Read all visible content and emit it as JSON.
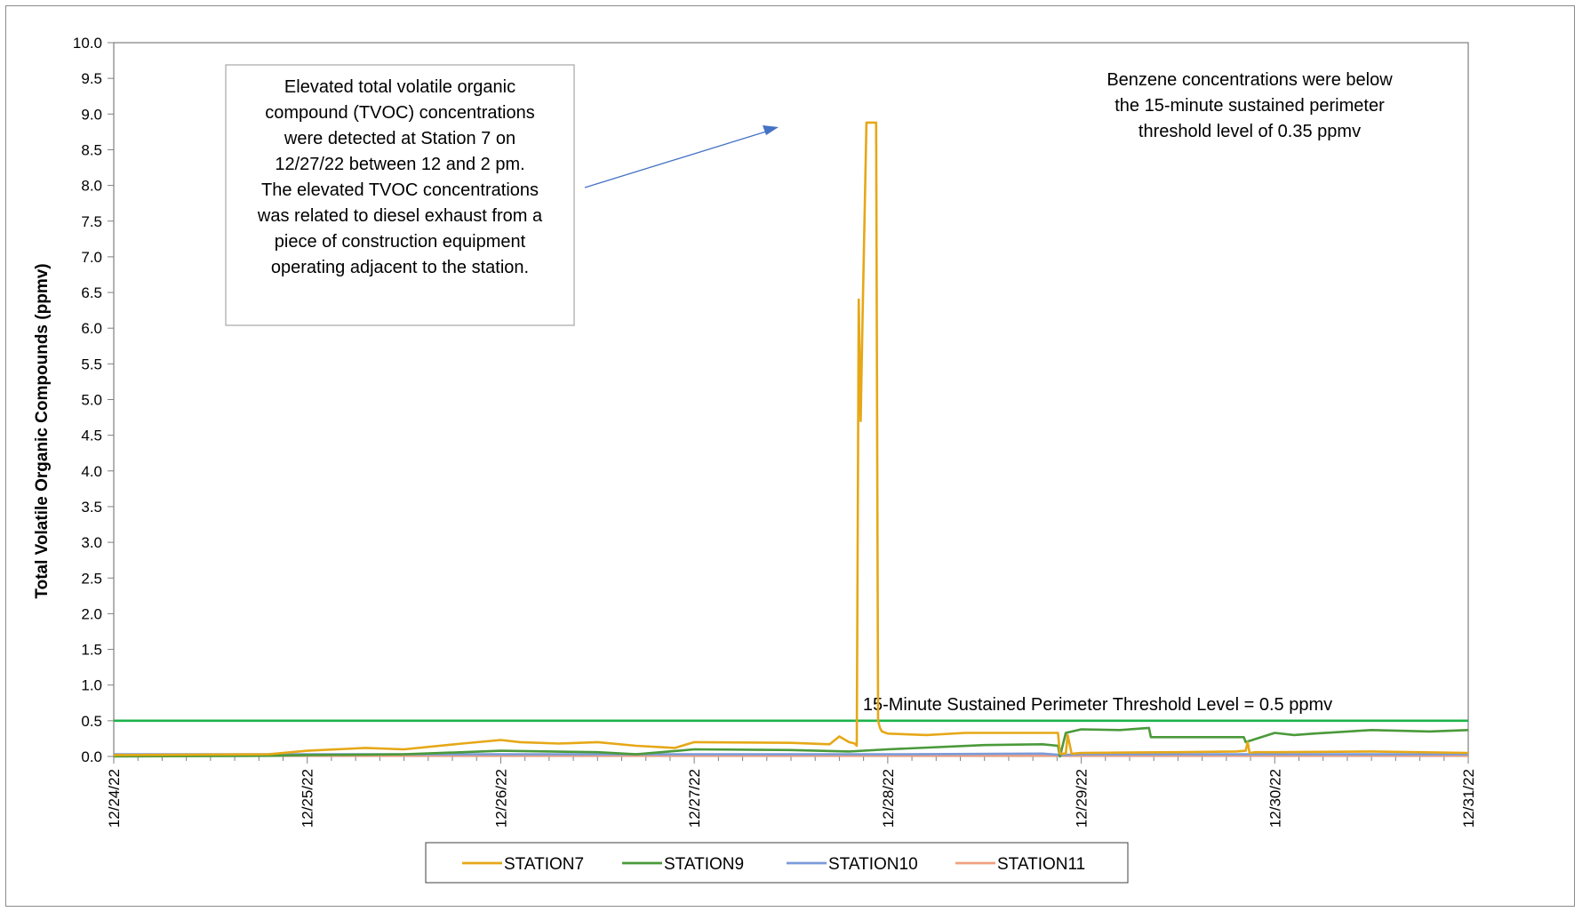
{
  "chart_data": {
    "type": "line",
    "title": "",
    "xlabel": "",
    "ylabel": "Total Volatile Organic Compounds (ppmv)",
    "ylim": [
      0,
      10
    ],
    "y_ticks": [
      "0.0",
      "0.5",
      "1.0",
      "1.5",
      "2.0",
      "2.5",
      "3.0",
      "3.5",
      "4.0",
      "4.5",
      "5.0",
      "5.5",
      "6.0",
      "6.5",
      "7.0",
      "7.5",
      "8.0",
      "8.5",
      "9.0",
      "9.5",
      "10.0"
    ],
    "x_unit": "days",
    "xlim": [
      0,
      7
    ],
    "x_tick_labels": [
      "12/24/22",
      "12/25/22",
      "12/26/22",
      "12/27/22",
      "12/28/22",
      "12/29/22",
      "12/30/22",
      "12/31/22"
    ],
    "grid": false,
    "legend_position": "bottom",
    "threshold": {
      "value": 0.5,
      "color": "#1db34a",
      "label": "15-Minute Sustained Perimeter Threshold Level = 0.5 ppmv"
    },
    "annotation_box": {
      "lines": [
        "Elevated total volatile organic",
        "compound (TVOC) concentrations",
        "were detected at Station 7 on",
        "12/27/22 between 12 and 2 pm.",
        "The elevated TVOC concentrations",
        "was related to diesel exhaust from a",
        "piece of construction equipment",
        "operating adjacent to the station."
      ]
    },
    "benzene_note": {
      "lines": [
        "Benzene concentrations were below",
        "the 15-minute sustained perimeter",
        "threshold level of 0.35 ppmv"
      ]
    },
    "series": [
      {
        "name": "STATION7",
        "color": "#e6a817",
        "x": [
          0,
          0.8,
          1.0,
          1.3,
          1.5,
          1.8,
          2.0,
          2.1,
          2.3,
          2.5,
          2.7,
          2.9,
          3.0,
          3.5,
          3.7,
          3.75,
          3.8,
          3.83,
          3.84,
          3.85,
          3.86,
          3.87,
          3.89,
          3.9,
          3.92,
          3.94,
          3.95,
          3.96,
          3.97,
          4.0,
          4.2,
          4.4,
          4.6,
          4.8,
          4.88,
          4.89,
          4.92,
          4.93,
          4.95,
          4.96,
          5.0,
          5.5,
          5.8,
          5.85,
          5.86,
          5.87,
          5.9,
          6.0,
          6.5,
          7.0
        ],
        "values": [
          0.02,
          0.03,
          0.08,
          0.12,
          0.1,
          0.18,
          0.23,
          0.2,
          0.18,
          0.2,
          0.15,
          0.12,
          0.2,
          0.19,
          0.17,
          0.28,
          0.2,
          0.18,
          0.15,
          6.4,
          4.7,
          6.2,
          8.88,
          8.88,
          8.88,
          8.88,
          0.5,
          0.4,
          0.35,
          0.32,
          0.3,
          0.33,
          0.33,
          0.33,
          0.33,
          0.04,
          0.04,
          0.3,
          0.04,
          0.04,
          0.05,
          0.06,
          0.07,
          0.08,
          0.2,
          0.05,
          0.06,
          0.06,
          0.07,
          0.05
        ]
      },
      {
        "name": "STATION9",
        "color": "#4a9a3a",
        "x": [
          0,
          0.8,
          1.0,
          1.5,
          2.0,
          2.5,
          2.7,
          3.0,
          3.5,
          3.8,
          4.0,
          4.5,
          4.8,
          4.88,
          4.89,
          4.92,
          5.0,
          5.2,
          5.35,
          5.36,
          5.6,
          5.84,
          5.85,
          6.0,
          6.1,
          6.2,
          6.5,
          6.8,
          7.0
        ],
        "values": [
          0.0,
          0.01,
          0.02,
          0.03,
          0.08,
          0.06,
          0.03,
          0.1,
          0.09,
          0.07,
          0.1,
          0.16,
          0.17,
          0.15,
          0.0,
          0.33,
          0.38,
          0.37,
          0.4,
          0.27,
          0.27,
          0.27,
          0.2,
          0.33,
          0.3,
          0.32,
          0.37,
          0.35,
          0.37
        ]
      },
      {
        "name": "STATION10",
        "color": "#7b9bd9",
        "x": [
          0,
          1,
          2,
          3,
          4,
          4.8,
          4.9,
          5,
          6,
          7
        ],
        "values": [
          0.03,
          0.03,
          0.03,
          0.03,
          0.03,
          0.04,
          0.02,
          0.03,
          0.03,
          0.03
        ]
      },
      {
        "name": "STATION11",
        "color": "#f0a080",
        "x": [
          0,
          1,
          2,
          3,
          4,
          5,
          6,
          7
        ],
        "values": [
          0.01,
          0.01,
          0.01,
          0.01,
          0.01,
          0.01,
          0.01,
          0.01
        ]
      }
    ]
  }
}
